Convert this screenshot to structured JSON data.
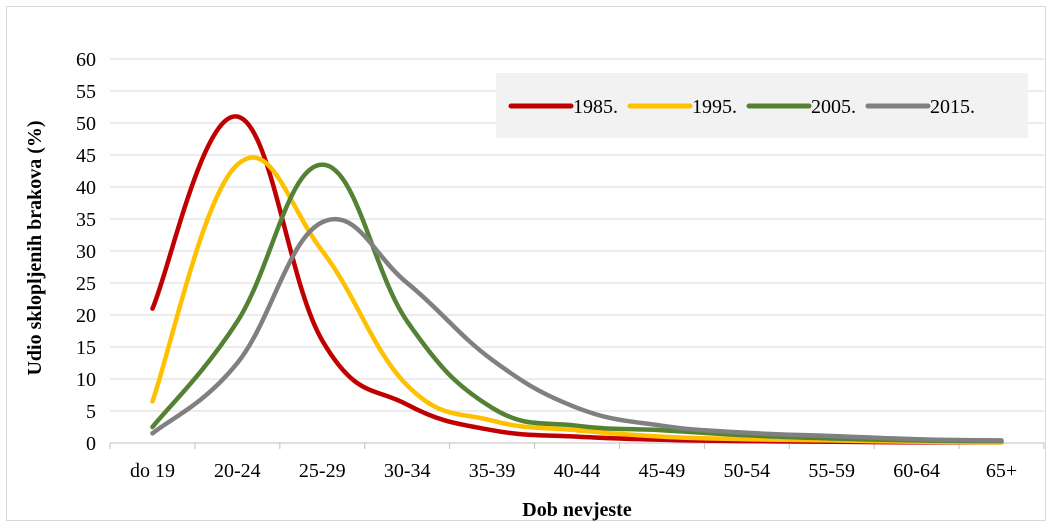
{
  "chart_data": {
    "type": "line",
    "title": "",
    "xlabel": "Dob nevjeste",
    "ylabel": "Udio sklopljenih brakova (%)",
    "categories": [
      "do 19",
      "20-24",
      "25-29",
      "30-34",
      "35-39",
      "40-44",
      "45-49",
      "50-54",
      "55-59",
      "60-64",
      "65+"
    ],
    "yticks": [
      "0",
      "5",
      "10",
      "15",
      "20",
      "25",
      "30",
      "35",
      "40",
      "45",
      "50",
      "55",
      "60"
    ],
    "ylim": [
      0,
      60
    ],
    "grid": true,
    "legend_position": "top-right",
    "series": [
      {
        "name": "1985.",
        "color": "#c00000",
        "values": [
          21,
          51,
          16,
          6,
          2,
          1,
          0.5,
          0.3,
          0.2,
          0.1,
          0.1
        ]
      },
      {
        "name": "1995.",
        "color": "#ffc000",
        "values": [
          6.5,
          43.5,
          30,
          9,
          3.5,
          2,
          1,
          0.6,
          0.4,
          0.2,
          0.1
        ]
      },
      {
        "name": "2005.",
        "color": "#548235",
        "values": [
          2.5,
          19,
          43.5,
          19,
          5.5,
          2.7,
          2,
          1.2,
          0.7,
          0.4,
          0.3
        ]
      },
      {
        "name": "2015.",
        "color": "#808080",
        "values": [
          1.5,
          12.5,
          34.5,
          25,
          13,
          5.5,
          2.7,
          1.6,
          1.1,
          0.6,
          0.4
        ]
      }
    ]
  }
}
